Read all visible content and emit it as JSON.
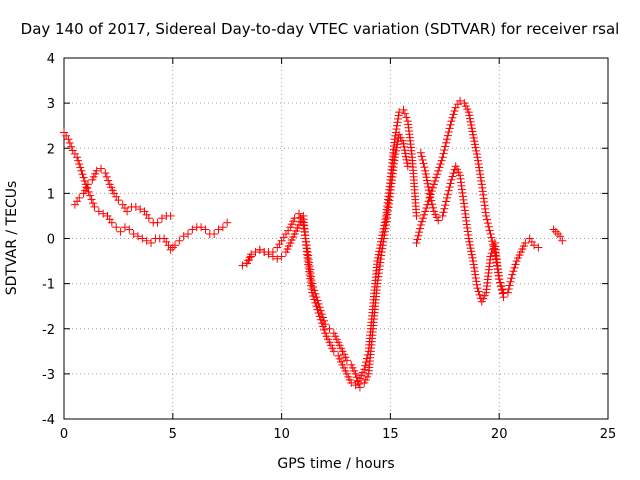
{
  "chart_data": {
    "type": "scatter",
    "title": "Day 140 of 2017, Sidereal Day-to-day VTEC variation (SDTVAR) for receiver rsal",
    "xlabel": "GPS time / hours",
    "ylabel": "SDTVAR / TECUs",
    "xlim": [
      0,
      25
    ],
    "ylim": [
      -4,
      4
    ],
    "xticks": [
      "0",
      "5",
      "10",
      "15",
      "20",
      "25"
    ],
    "yticks": [
      "-4",
      "-3",
      "-2",
      "-1",
      "0",
      "1",
      "2",
      "3",
      "4"
    ],
    "grid": true,
    "marker": "plus",
    "color": "#ff0000",
    "series": [
      {
        "x": [
          0.0,
          0.2,
          0.4,
          0.6,
          0.8,
          1.0,
          1.2,
          1.4,
          1.6,
          1.8,
          2.0,
          2.2,
          2.4,
          2.6,
          2.8,
          3.0,
          3.2,
          3.4,
          3.6,
          3.8,
          4.0,
          4.2,
          4.4,
          4.6,
          4.8,
          5.0
        ],
        "y": [
          2.35,
          2.2,
          1.95,
          1.8,
          1.5,
          1.2,
          0.95,
          0.7,
          0.6,
          0.55,
          0.5,
          0.35,
          0.25,
          0.15,
          0.25,
          0.2,
          0.1,
          0.05,
          0.0,
          -0.05,
          -0.1,
          0.0,
          0.0,
          0.0,
          -0.15,
          -0.2
        ]
      },
      {
        "x": [
          0.5,
          0.7,
          0.9,
          1.1,
          1.3,
          1.5,
          1.7,
          1.9,
          2.1,
          2.3,
          2.5,
          2.7,
          2.9,
          3.1,
          3.3,
          3.5,
          3.7,
          3.9,
          4.1,
          4.3,
          4.5,
          4.7,
          4.9
        ],
        "y": [
          0.75,
          0.9,
          1.0,
          1.2,
          1.3,
          1.5,
          1.55,
          1.45,
          1.2,
          1.0,
          0.85,
          0.75,
          0.6,
          0.7,
          0.7,
          0.65,
          0.6,
          0.45,
          0.35,
          0.35,
          0.45,
          0.5,
          0.5
        ]
      },
      {
        "x": [
          4.9,
          5.1,
          5.3,
          5.5,
          5.7,
          5.9,
          6.1,
          6.3,
          6.5,
          6.7,
          6.9,
          7.1,
          7.3,
          7.5
        ],
        "y": [
          -0.25,
          -0.15,
          -0.05,
          0.05,
          0.1,
          0.2,
          0.25,
          0.25,
          0.2,
          0.1,
          0.1,
          0.2,
          0.25,
          0.35
        ]
      },
      {
        "x": [
          8.2,
          8.4,
          8.6,
          8.8,
          9.0,
          9.2,
          9.4,
          9.6,
          9.8,
          10.0,
          10.2,
          10.4,
          10.6,
          10.8,
          11.0,
          11.2,
          11.4,
          11.6,
          11.8,
          12.0,
          12.2,
          12.4,
          12.6,
          12.8,
          13.0,
          13.2,
          13.4,
          13.6,
          13.8,
          14.0,
          14.2,
          14.4,
          14.6,
          14.8,
          15.0,
          15.2,
          15.4,
          15.6,
          15.8,
          16.0,
          16.2
        ],
        "y": [
          -0.6,
          -0.55,
          -0.4,
          -0.3,
          -0.25,
          -0.3,
          -0.3,
          -0.4,
          -0.45,
          -0.4,
          -0.3,
          -0.1,
          0.1,
          0.3,
          0.5,
          -0.5,
          -1.2,
          -1.5,
          -1.8,
          -2.1,
          -2.3,
          -2.5,
          -2.6,
          -2.8,
          -3.0,
          -3.2,
          -3.25,
          -3.1,
          -2.9,
          -2.5,
          -1.5,
          -0.5,
          0.0,
          0.5,
          1.3,
          2.2,
          2.8,
          2.85,
          2.6,
          1.8,
          0.5
        ]
      },
      {
        "x": [
          8.4,
          8.6,
          8.8,
          9.0,
          9.2,
          9.4,
          9.6,
          9.8,
          10.0,
          10.2,
          10.4,
          10.6,
          10.8,
          11.0,
          11.2,
          11.4,
          11.6,
          11.8,
          12.0,
          12.2,
          12.4,
          12.6,
          12.8,
          13.0,
          13.2,
          13.4,
          13.6,
          13.8,
          14.0,
          14.2,
          14.4,
          14.6,
          14.8,
          15.0,
          15.2,
          15.4,
          15.6,
          15.8
        ],
        "y": [
          -0.55,
          -0.35,
          -0.3,
          -0.25,
          -0.3,
          -0.35,
          -0.3,
          -0.2,
          -0.05,
          0.1,
          0.25,
          0.45,
          0.55,
          0.3,
          -0.3,
          -1.0,
          -1.3,
          -1.6,
          -1.9,
          -2.0,
          -2.1,
          -2.3,
          -2.5,
          -2.7,
          -2.8,
          -3.0,
          -3.3,
          -3.2,
          -3.0,
          -2.0,
          -1.0,
          -0.3,
          0.3,
          1.0,
          1.8,
          2.3,
          2.1,
          1.6
        ]
      },
      {
        "x": [
          16.2,
          16.4,
          16.6,
          16.8,
          17.0,
          17.2,
          17.4,
          17.6,
          17.8,
          18.0,
          18.2,
          18.4,
          18.6,
          18.8,
          19.0,
          19.2,
          19.4,
          19.6,
          19.8,
          20.0,
          20.2,
          20.4,
          20.6,
          20.8,
          21.0,
          21.2,
          21.4,
          21.6,
          21.8
        ],
        "y": [
          -0.1,
          0.3,
          0.6,
          0.9,
          1.2,
          1.5,
          1.8,
          2.2,
          2.6,
          2.9,
          3.05,
          3.0,
          2.8,
          2.3,
          1.8,
          1.2,
          0.5,
          0.1,
          -0.3,
          -0.9,
          -1.3,
          -1.2,
          -0.8,
          -0.5,
          -0.3,
          -0.1,
          0.0,
          -0.15,
          -0.2
        ]
      },
      {
        "x": [
          16.4,
          16.6,
          16.8,
          17.0,
          17.2,
          17.4,
          17.6,
          17.8,
          18.0,
          18.2,
          18.4,
          18.6,
          18.8,
          19.0,
          19.2,
          19.4,
          19.6,
          19.8,
          20.0,
          20.2
        ],
        "y": [
          1.9,
          1.5,
          1.0,
          0.6,
          0.4,
          0.5,
          0.9,
          1.3,
          1.6,
          1.4,
          0.7,
          0.0,
          -0.5,
          -1.1,
          -1.4,
          -1.2,
          -0.4,
          -0.1,
          -0.9,
          -1.2
        ]
      },
      {
        "x": [
          22.5,
          22.6,
          22.7,
          22.8,
          22.9
        ],
        "y": [
          0.2,
          0.15,
          0.1,
          0.05,
          -0.05
        ]
      }
    ]
  }
}
